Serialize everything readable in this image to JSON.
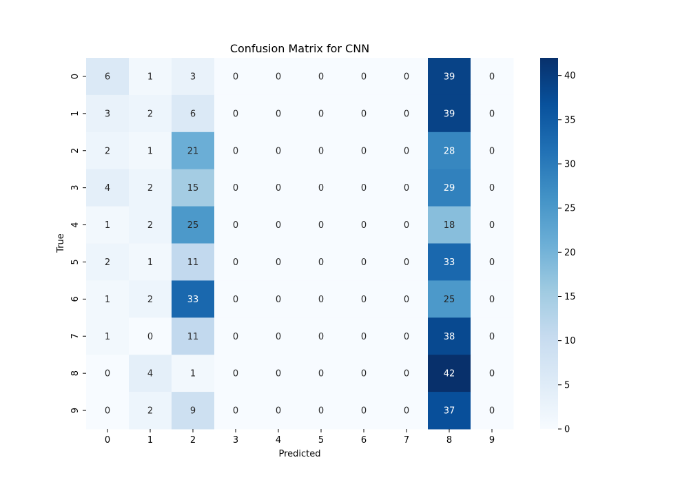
{
  "chart_data": {
    "type": "heatmap",
    "title": "Confusion Matrix for CNN",
    "xlabel": "Predicted",
    "ylabel": "True",
    "x_categories": [
      "0",
      "1",
      "2",
      "3",
      "4",
      "5",
      "6",
      "7",
      "8",
      "9"
    ],
    "y_categories": [
      "0",
      "1",
      "2",
      "3",
      "4",
      "5",
      "6",
      "7",
      "8",
      "9"
    ],
    "values": [
      [
        6,
        1,
        3,
        0,
        0,
        0,
        0,
        0,
        39,
        0
      ],
      [
        3,
        2,
        6,
        0,
        0,
        0,
        0,
        0,
        39,
        0
      ],
      [
        2,
        1,
        21,
        0,
        0,
        0,
        0,
        0,
        28,
        0
      ],
      [
        4,
        2,
        15,
        0,
        0,
        0,
        0,
        0,
        29,
        0
      ],
      [
        1,
        2,
        25,
        0,
        0,
        0,
        0,
        0,
        18,
        0
      ],
      [
        2,
        1,
        11,
        0,
        0,
        0,
        0,
        0,
        33,
        0
      ],
      [
        1,
        2,
        33,
        0,
        0,
        0,
        0,
        0,
        25,
        0
      ],
      [
        1,
        0,
        11,
        0,
        0,
        0,
        0,
        0,
        38,
        0
      ],
      [
        0,
        4,
        1,
        0,
        0,
        0,
        0,
        0,
        42,
        0
      ],
      [
        0,
        2,
        9,
        0,
        0,
        0,
        0,
        0,
        37,
        0
      ]
    ],
    "colormap": "Blues",
    "color_min": "#f7fbff",
    "color_max": "#08306b",
    "colorbar": {
      "range": [
        0,
        42
      ],
      "ticks": [
        0,
        5,
        10,
        15,
        20,
        25,
        30,
        35,
        40
      ]
    },
    "annotations": true
  }
}
